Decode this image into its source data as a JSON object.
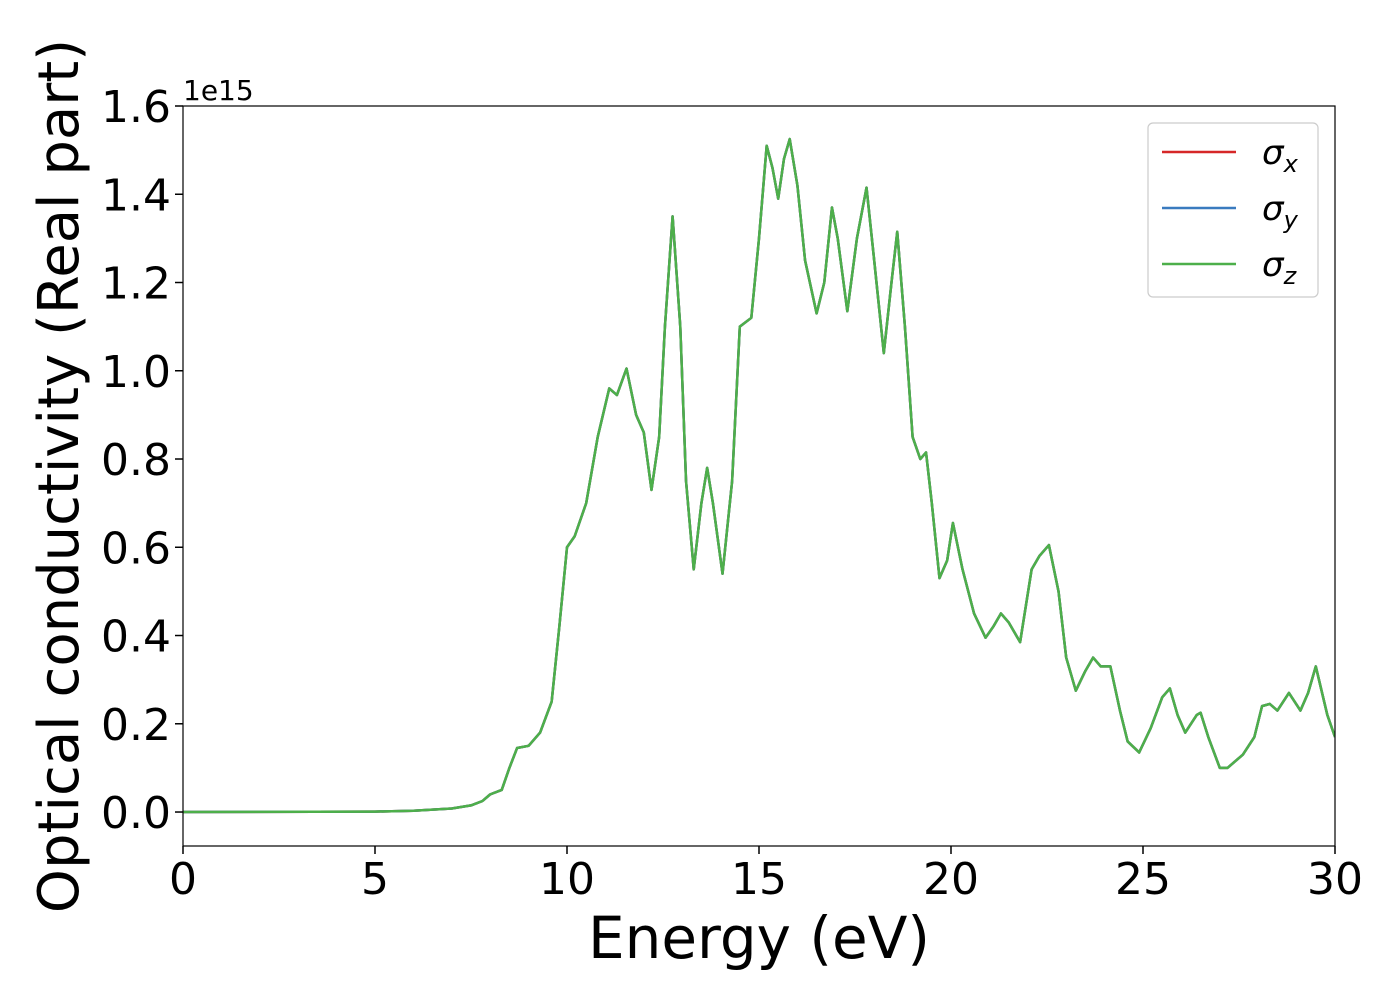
{
  "chart_data": {
    "type": "line",
    "x_label": "Energy (eV)",
    "y_label": "Optical conductivity (Real part)",
    "y_offset_text": "1e15",
    "xlim": [
      0,
      30
    ],
    "ylim": [
      -0.077,
      1.6
    ],
    "xticks": [
      0,
      5,
      10,
      15,
      20,
      25,
      30
    ],
    "yticks": [
      {
        "value": 0,
        "label": "0.0"
      },
      0.2,
      0.4,
      0.6,
      0.8,
      {
        "value": 1,
        "label": "1.0"
      },
      1.2,
      1.4,
      1.6
    ],
    "legend": "upper right",
    "x": [
      0,
      5,
      6,
      7,
      7.5,
      7.8,
      8.0,
      8.3,
      8.5,
      8.7,
      9.0,
      9.3,
      9.6,
      9.8,
      10.0,
      10.2,
      10.5,
      10.8,
      11.1,
      11.3,
      11.55,
      11.8,
      12.0,
      12.2,
      12.4,
      12.55,
      12.75,
      12.95,
      13.1,
      13.3,
      13.5,
      13.65,
      13.8,
      14.05,
      14.3,
      14.5,
      14.8,
      15.0,
      15.2,
      15.35,
      15.5,
      15.65,
      15.8,
      16.0,
      16.2,
      16.5,
      16.7,
      16.9,
      17.05,
      17.3,
      17.55,
      17.8,
      18.0,
      18.25,
      18.45,
      18.6,
      18.8,
      19.0,
      19.2,
      19.35,
      19.5,
      19.7,
      19.9,
      20.05,
      20.3,
      20.6,
      20.9,
      21.1,
      21.3,
      21.5,
      21.8,
      22.1,
      22.3,
      22.55,
      22.8,
      23.0,
      23.25,
      23.5,
      23.7,
      23.9,
      24.15,
      24.4,
      24.6,
      24.9,
      25.2,
      25.5,
      25.7,
      25.9,
      26.1,
      26.4,
      26.5,
      26.7,
      27.0,
      27.2,
      27.6,
      27.9,
      28.1,
      28.3,
      28.5,
      28.8,
      29.1,
      29.3,
      29.5,
      29.8,
      30.0
    ],
    "series": [
      {
        "name": "σx",
        "color": "#d62728",
        "values": [
          0,
          0.001,
          0.003,
          0.008,
          0.015,
          0.025,
          0.04,
          0.05,
          0.1,
          0.145,
          0.15,
          0.18,
          0.25,
          0.42,
          0.6,
          0.625,
          0.7,
          0.85,
          0.96,
          0.945,
          1.005,
          0.9,
          0.86,
          0.73,
          0.85,
          1.1,
          1.35,
          1.1,
          0.75,
          0.55,
          0.7,
          0.78,
          0.7,
          0.54,
          0.75,
          1.1,
          1.12,
          1.3,
          1.51,
          1.46,
          1.39,
          1.48,
          1.525,
          1.42,
          1.25,
          1.13,
          1.2,
          1.37,
          1.3,
          1.135,
          1.3,
          1.415,
          1.25,
          1.04,
          1.2,
          1.315,
          1.1,
          0.85,
          0.8,
          0.815,
          0.7,
          0.53,
          0.57,
          0.655,
          0.55,
          0.45,
          0.395,
          0.42,
          0.45,
          0.43,
          0.385,
          0.55,
          0.58,
          0.605,
          0.5,
          0.35,
          0.275,
          0.32,
          0.35,
          0.33,
          0.33,
          0.23,
          0.16,
          0.135,
          0.19,
          0.26,
          0.28,
          0.22,
          0.18,
          0.22,
          0.225,
          0.17,
          0.1,
          0.1,
          0.13,
          0.17,
          0.24,
          0.245,
          0.23,
          0.27,
          0.23,
          0.27,
          0.33,
          0.22,
          0.17
        ]
      },
      {
        "name": "σy",
        "color": "#3a7bbf",
        "values": [
          0,
          0.001,
          0.003,
          0.008,
          0.015,
          0.025,
          0.04,
          0.05,
          0.1,
          0.145,
          0.15,
          0.18,
          0.25,
          0.42,
          0.6,
          0.625,
          0.7,
          0.85,
          0.96,
          0.945,
          1.005,
          0.9,
          0.86,
          0.73,
          0.85,
          1.1,
          1.35,
          1.1,
          0.75,
          0.55,
          0.7,
          0.78,
          0.7,
          0.54,
          0.75,
          1.1,
          1.12,
          1.3,
          1.51,
          1.46,
          1.39,
          1.48,
          1.525,
          1.42,
          1.25,
          1.13,
          1.2,
          1.37,
          1.3,
          1.135,
          1.3,
          1.415,
          1.25,
          1.04,
          1.2,
          1.315,
          1.1,
          0.85,
          0.8,
          0.815,
          0.7,
          0.53,
          0.57,
          0.655,
          0.55,
          0.45,
          0.395,
          0.42,
          0.45,
          0.43,
          0.385,
          0.55,
          0.58,
          0.605,
          0.5,
          0.35,
          0.275,
          0.32,
          0.35,
          0.33,
          0.33,
          0.23,
          0.16,
          0.135,
          0.19,
          0.26,
          0.28,
          0.22,
          0.18,
          0.22,
          0.225,
          0.17,
          0.1,
          0.1,
          0.13,
          0.17,
          0.24,
          0.245,
          0.23,
          0.27,
          0.23,
          0.27,
          0.33,
          0.22,
          0.17
        ]
      },
      {
        "name": "σz",
        "color": "#4daf4a",
        "values": [
          0,
          0.001,
          0.003,
          0.008,
          0.015,
          0.025,
          0.04,
          0.05,
          0.1,
          0.145,
          0.15,
          0.18,
          0.25,
          0.42,
          0.6,
          0.625,
          0.7,
          0.85,
          0.96,
          0.945,
          1.005,
          0.9,
          0.86,
          0.73,
          0.85,
          1.1,
          1.35,
          1.1,
          0.75,
          0.55,
          0.7,
          0.78,
          0.7,
          0.54,
          0.75,
          1.1,
          1.12,
          1.3,
          1.51,
          1.46,
          1.39,
          1.48,
          1.525,
          1.42,
          1.25,
          1.13,
          1.2,
          1.37,
          1.3,
          1.135,
          1.3,
          1.415,
          1.25,
          1.04,
          1.2,
          1.315,
          1.1,
          0.85,
          0.8,
          0.815,
          0.7,
          0.53,
          0.57,
          0.655,
          0.55,
          0.45,
          0.395,
          0.42,
          0.45,
          0.43,
          0.385,
          0.55,
          0.58,
          0.605,
          0.5,
          0.35,
          0.275,
          0.32,
          0.35,
          0.33,
          0.33,
          0.23,
          0.16,
          0.135,
          0.19,
          0.26,
          0.28,
          0.22,
          0.18,
          0.22,
          0.225,
          0.17,
          0.1,
          0.1,
          0.13,
          0.17,
          0.24,
          0.245,
          0.23,
          0.27,
          0.23,
          0.27,
          0.33,
          0.22,
          0.17
        ]
      }
    ]
  }
}
